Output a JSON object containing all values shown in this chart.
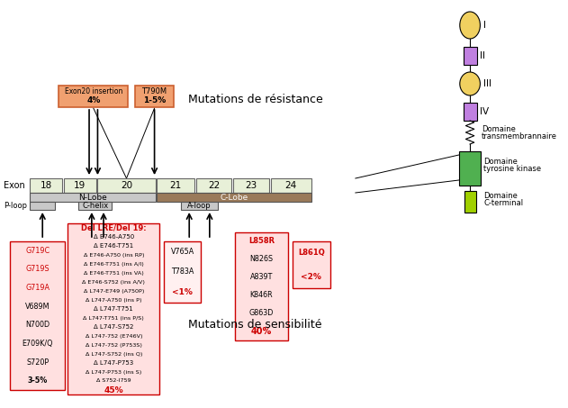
{
  "bg_color": "#ffffff",
  "exon_labels": [
    "18",
    "19",
    "20",
    "21",
    "22",
    "23",
    "24"
  ],
  "exon_color": "#e8f0d8",
  "nlobe_color": "#c8c8c8",
  "clobe_color": "#9a7a5a",
  "loop_color": "#c8c8c8",
  "resist_color": "#f0a070",
  "resist_edge": "#cc6030",
  "sens_color": "#ffe0e0",
  "sens_edge": "#cc0000",
  "sens_color2": "#fff0f0",
  "domain_yellow": "#f0d060",
  "domain_purple": "#c080e0",
  "domain_kinase": "#50b050",
  "domain_cterminal": "#a0d000"
}
